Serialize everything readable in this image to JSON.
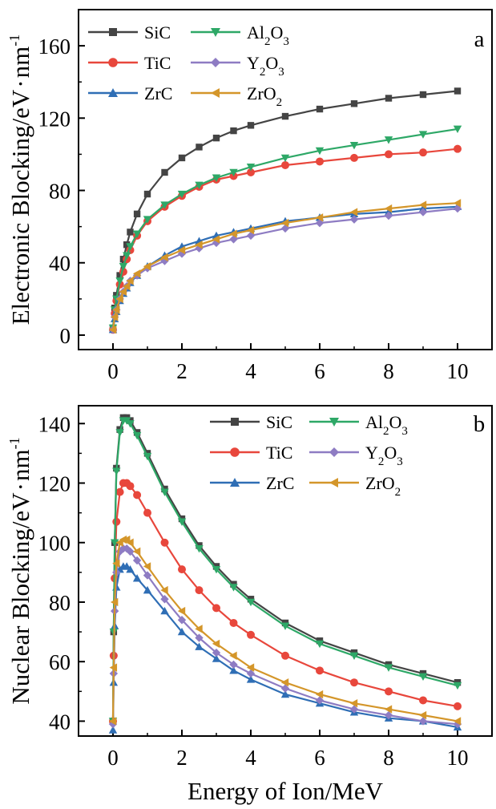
{
  "chart_data": [
    {
      "type": "line",
      "panel_label": "a",
      "ylabel_main": "Electronic Blocking/eV",
      "ylabel_tail": "·",
      "ylabel_unit": "nm",
      "ylabel_exp": "-1",
      "xlabel": "",
      "xlim": [
        -1,
        11
      ],
      "ylim": [
        -8,
        180
      ],
      "xticks": [
        0,
        2,
        4,
        6,
        8,
        10
      ],
      "yticks": [
        0,
        40,
        80,
        120,
        160
      ],
      "legend_position": "top-left",
      "series": [
        {
          "key": "sic",
          "name": "SiC",
          "label_parts": [
            [
              "SiC",
              ""
            ]
          ],
          "color": "#444444",
          "marker": "square",
          "x": [
            0,
            0.05,
            0.1,
            0.2,
            0.3,
            0.4,
            0.5,
            0.7,
            1.0,
            1.5,
            2.0,
            2.5,
            3.0,
            3.5,
            4.0,
            5.0,
            6.0,
            7.0,
            8.0,
            9.0,
            10.0
          ],
          "y": [
            4,
            15,
            22,
            33,
            42,
            50,
            57,
            67,
            78,
            90,
            98,
            104,
            109,
            113,
            116,
            121,
            125,
            128,
            131,
            133,
            135
          ]
        },
        {
          "key": "tic",
          "name": "TiC",
          "label_parts": [
            [
              "TiC",
              ""
            ]
          ],
          "color": "#e8473c",
          "marker": "circle",
          "x": [
            0,
            0.05,
            0.1,
            0.2,
            0.3,
            0.4,
            0.5,
            0.7,
            1.0,
            1.5,
            2.0,
            2.5,
            3.0,
            3.5,
            4.0,
            5.0,
            6.0,
            7.0,
            8.0,
            9.0,
            10.0
          ],
          "y": [
            3,
            12,
            19,
            28,
            35,
            42,
            47,
            55,
            63,
            71,
            77,
            82,
            86,
            88,
            90,
            94,
            96,
            98,
            100,
            101,
            103
          ]
        },
        {
          "key": "zrc",
          "name": "ZrC",
          "label_parts": [
            [
              "ZrC",
              ""
            ]
          ],
          "color": "#2f6eb5",
          "marker": "triangle-up",
          "x": [
            0,
            0.05,
            0.1,
            0.2,
            0.3,
            0.4,
            0.5,
            0.7,
            1.0,
            1.5,
            2.0,
            2.5,
            3.0,
            3.5,
            4.0,
            5.0,
            6.0,
            7.0,
            8.0,
            9.0,
            10.0
          ],
          "y": [
            3,
            9,
            13,
            19,
            23,
            26,
            29,
            33,
            38,
            44,
            49,
            52,
            55,
            57,
            59,
            63,
            65,
            67,
            68,
            70,
            71
          ]
        },
        {
          "key": "al2o3",
          "name": "Al2O3",
          "label_parts": [
            [
              "Al",
              ""
            ],
            [
              "2",
              "sub"
            ],
            [
              "O",
              ""
            ],
            [
              "3",
              "sub"
            ]
          ],
          "color": "#2ea867",
          "marker": "triangle-down",
          "x": [
            0,
            0.05,
            0.1,
            0.2,
            0.3,
            0.4,
            0.5,
            0.7,
            1.0,
            1.5,
            2.0,
            2.5,
            3.0,
            3.5,
            4.0,
            5.0,
            6.0,
            7.0,
            8.0,
            9.0,
            10.0
          ],
          "y": [
            4,
            14,
            20,
            30,
            38,
            44,
            49,
            56,
            64,
            72,
            78,
            83,
            87,
            90,
            93,
            98,
            102,
            105,
            108,
            111,
            114
          ]
        },
        {
          "key": "y2o3",
          "name": "Y2O3",
          "label_parts": [
            [
              "Y",
              ""
            ],
            [
              "2",
              "sub"
            ],
            [
              "O",
              ""
            ],
            [
              "3",
              "sub"
            ]
          ],
          "color": "#8e7cc3",
          "marker": "diamond",
          "x": [
            0,
            0.05,
            0.1,
            0.2,
            0.3,
            0.4,
            0.5,
            0.7,
            1.0,
            1.5,
            2.0,
            2.5,
            3.0,
            3.5,
            4.0,
            5.0,
            6.0,
            7.0,
            8.0,
            9.0,
            10.0
          ],
          "y": [
            3,
            10,
            14,
            20,
            24,
            27,
            30,
            33,
            37,
            41,
            45,
            48,
            51,
            53,
            55,
            59,
            62,
            64,
            66,
            68,
            70
          ]
        },
        {
          "key": "zro2",
          "name": "ZrO2",
          "label_parts": [
            [
              "ZrO",
              ""
            ],
            [
              "2",
              "sub"
            ]
          ],
          "color": "#d4962a",
          "marker": "triangle-left",
          "x": [
            0,
            0.05,
            0.1,
            0.2,
            0.3,
            0.4,
            0.5,
            0.7,
            1.0,
            1.5,
            2.0,
            2.5,
            3.0,
            3.5,
            4.0,
            5.0,
            6.0,
            7.0,
            8.0,
            9.0,
            10.0
          ],
          "y": [
            3,
            10,
            14,
            20,
            24,
            27,
            30,
            34,
            38,
            43,
            47,
            50,
            53,
            56,
            58,
            62,
            65,
            68,
            70,
            72,
            73
          ]
        }
      ]
    },
    {
      "type": "line",
      "panel_label": "b",
      "ylabel_main": "Nuclear Blocking/eV",
      "ylabel_tail": "·",
      "ylabel_unit": "nm",
      "ylabel_exp": "-1",
      "xlabel": "Energy of Ion/MeV",
      "xlim": [
        -1,
        11
      ],
      "ylim": [
        35,
        146
      ],
      "xticks": [
        0,
        2,
        4,
        6,
        8,
        10
      ],
      "yticks": [
        40,
        60,
        80,
        100,
        120,
        140
      ],
      "legend_position": "top-right",
      "series": [
        {
          "key": "sic",
          "name": "SiC",
          "label_parts": [
            [
              "SiC",
              ""
            ]
          ],
          "color": "#444444",
          "marker": "square",
          "x": [
            0,
            0.02,
            0.05,
            0.1,
            0.2,
            0.3,
            0.4,
            0.5,
            0.7,
            1.0,
            1.5,
            2.0,
            2.5,
            3.0,
            3.5,
            4.0,
            5.0,
            6.0,
            7.0,
            8.0,
            9.0,
            10.0
          ],
          "y": [
            40,
            70,
            100,
            125,
            138,
            142,
            142,
            141,
            137,
            130,
            118,
            108,
            99,
            92,
            86,
            81,
            73,
            67,
            63,
            59,
            56,
            53
          ]
        },
        {
          "key": "tic",
          "name": "TiC",
          "label_parts": [
            [
              "TiC",
              ""
            ]
          ],
          "color": "#e8473c",
          "marker": "circle",
          "x": [
            0,
            0.02,
            0.05,
            0.1,
            0.2,
            0.3,
            0.4,
            0.5,
            0.7,
            1.0,
            1.5,
            2.0,
            2.5,
            3.0,
            3.5,
            4.0,
            5.0,
            6.0,
            7.0,
            8.0,
            9.0,
            10.0
          ],
          "y": [
            40,
            62,
            88,
            107,
            117,
            120,
            120,
            119,
            116,
            110,
            100,
            91,
            84,
            78,
            73,
            69,
            62,
            57,
            53,
            50,
            47,
            45
          ]
        },
        {
          "key": "zrc",
          "name": "ZrC",
          "label_parts": [
            [
              "ZrC",
              ""
            ]
          ],
          "color": "#2f6eb5",
          "marker": "triangle-up",
          "x": [
            0,
            0.02,
            0.05,
            0.1,
            0.2,
            0.3,
            0.4,
            0.5,
            0.7,
            1.0,
            1.5,
            2.0,
            2.5,
            3.0,
            3.5,
            4.0,
            5.0,
            6.0,
            7.0,
            8.0,
            9.0,
            10.0
          ],
          "y": [
            37,
            53,
            72,
            85,
            91,
            92,
            92,
            91,
            88,
            84,
            77,
            70,
            65,
            61,
            57,
            54,
            49,
            46,
            43,
            41,
            40,
            38
          ]
        },
        {
          "key": "al2o3",
          "name": "Al2O3",
          "label_parts": [
            [
              "Al",
              ""
            ],
            [
              "2",
              "sub"
            ],
            [
              "O",
              ""
            ],
            [
              "3",
              "sub"
            ]
          ],
          "color": "#2ea867",
          "marker": "triangle-down",
          "x": [
            0,
            0.02,
            0.05,
            0.1,
            0.2,
            0.3,
            0.4,
            0.5,
            0.7,
            1.0,
            1.5,
            2.0,
            2.5,
            3.0,
            3.5,
            4.0,
            5.0,
            6.0,
            7.0,
            8.0,
            9.0,
            10.0
          ],
          "y": [
            40,
            70,
            100,
            124,
            137,
            141,
            141,
            140,
            136,
            129,
            117,
            107,
            98,
            91,
            85,
            80,
            72,
            66,
            62,
            58,
            55,
            52
          ]
        },
        {
          "key": "y2o3",
          "name": "Y2O3",
          "label_parts": [
            [
              "Y",
              ""
            ],
            [
              "2",
              "sub"
            ],
            [
              "O",
              ""
            ],
            [
              "3",
              "sub"
            ]
          ],
          "color": "#8e7cc3",
          "marker": "diamond",
          "x": [
            0,
            0.02,
            0.05,
            0.1,
            0.2,
            0.3,
            0.4,
            0.5,
            0.7,
            1.0,
            1.5,
            2.0,
            2.5,
            3.0,
            3.5,
            4.0,
            5.0,
            6.0,
            7.0,
            8.0,
            9.0,
            10.0
          ],
          "y": [
            39,
            56,
            77,
            90,
            97,
            98,
            98,
            97,
            94,
            89,
            81,
            74,
            68,
            63,
            59,
            56,
            51,
            47,
            44,
            42,
            40,
            39
          ]
        },
        {
          "key": "zro2",
          "name": "ZrO2",
          "label_parts": [
            [
              "ZrO",
              ""
            ],
            [
              "2",
              "sub"
            ]
          ],
          "color": "#d4962a",
          "marker": "triangle-left",
          "x": [
            0,
            0.02,
            0.05,
            0.1,
            0.2,
            0.3,
            0.4,
            0.5,
            0.7,
            1.0,
            1.5,
            2.0,
            2.5,
            3.0,
            3.5,
            4.0,
            5.0,
            6.0,
            7.0,
            8.0,
            9.0,
            10.0
          ],
          "y": [
            40,
            58,
            80,
            93,
            100,
            101,
            101,
            100,
            97,
            92,
            84,
            77,
            71,
            66,
            62,
            58,
            53,
            49,
            46,
            44,
            42,
            40
          ]
        }
      ]
    }
  ]
}
